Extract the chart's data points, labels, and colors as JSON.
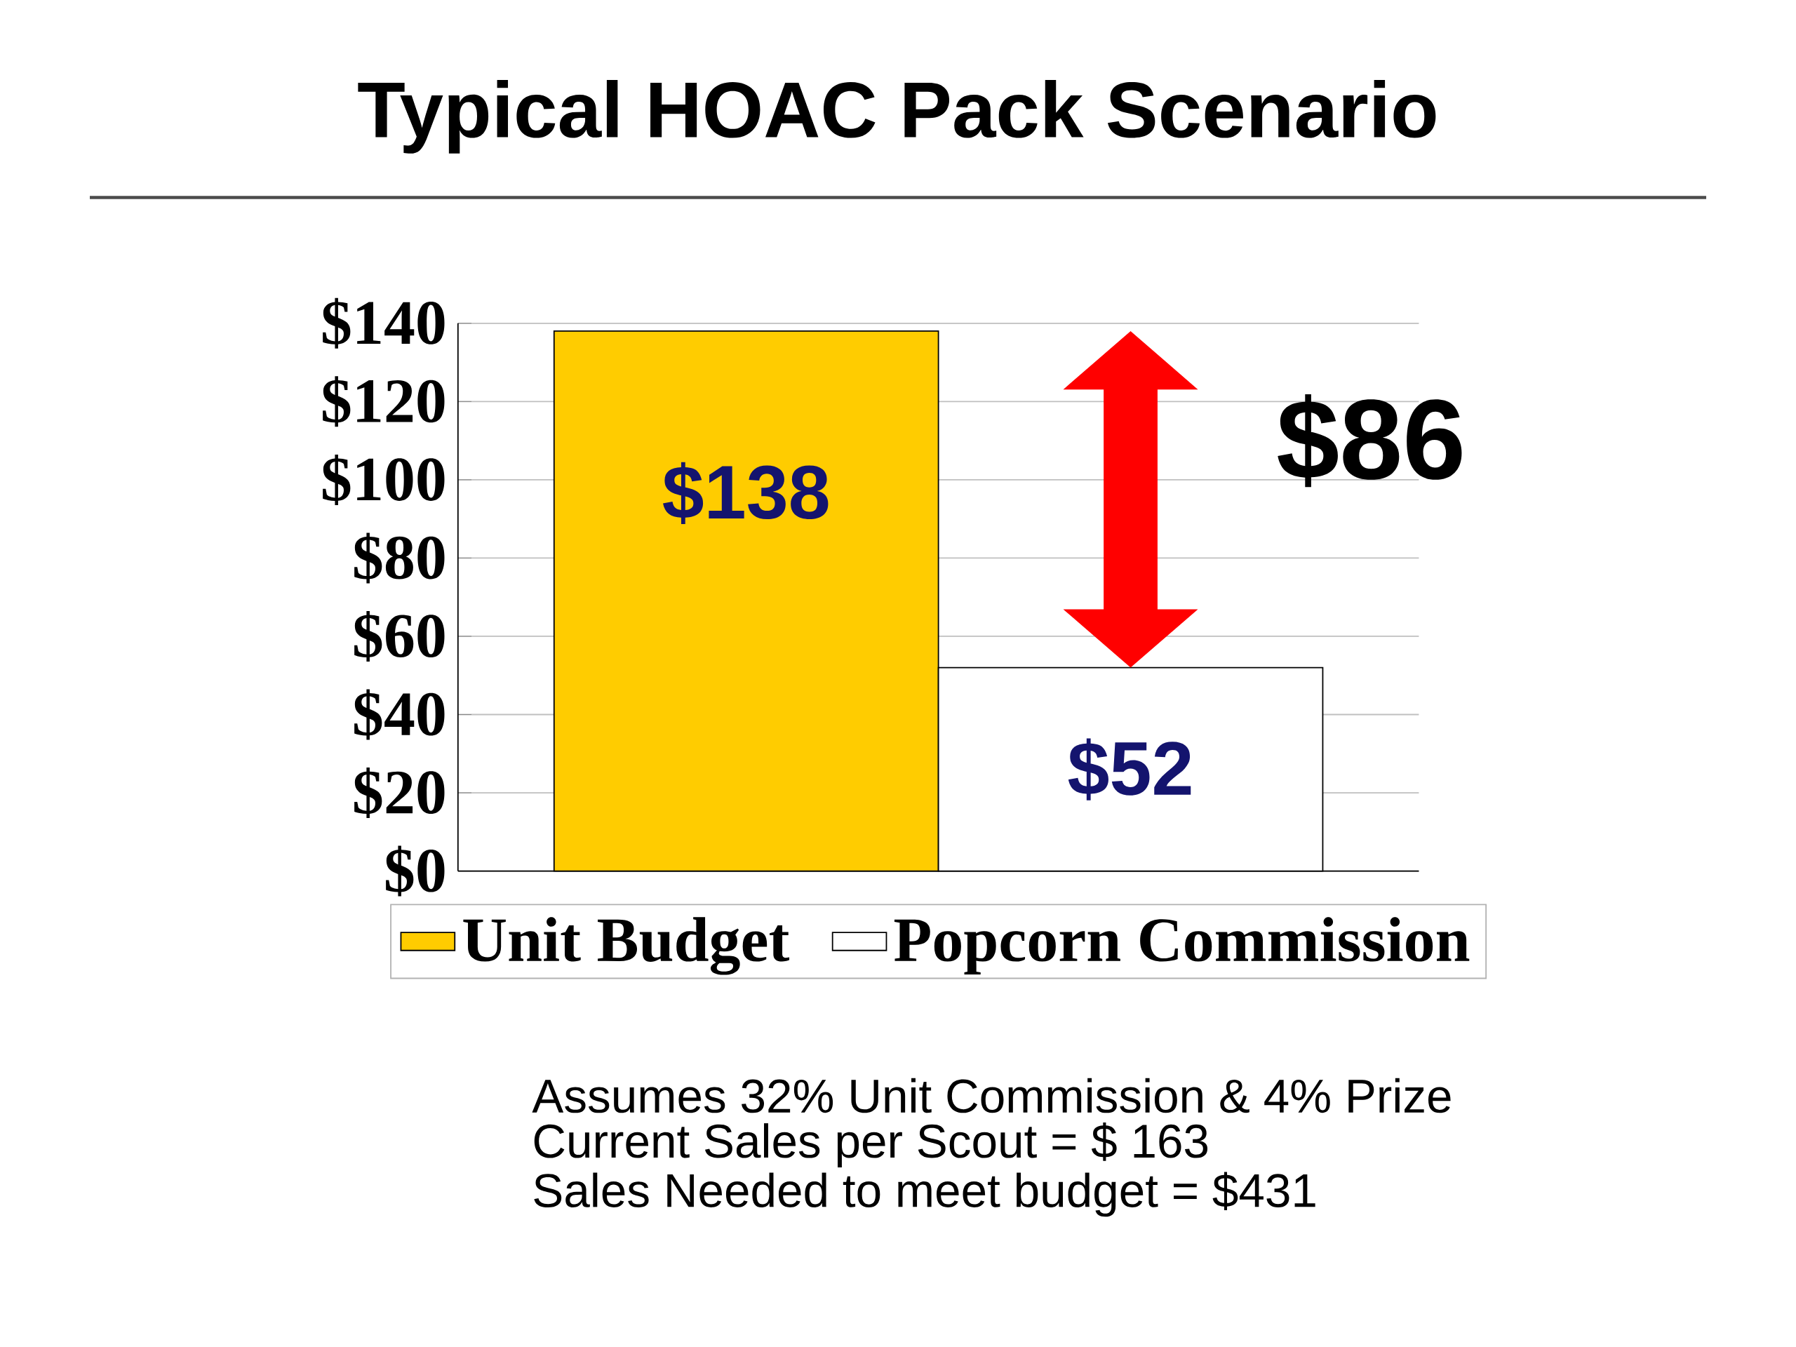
{
  "chart_data": {
    "type": "bar",
    "title": "Typical HOAC Pack Scenario",
    "categories": [
      null
    ],
    "series": [
      {
        "name": "Unit Budget",
        "color": "#ffcc00",
        "values": [
          138
        ],
        "value_labels": [
          "$138"
        ]
      },
      {
        "name": "Popcorn Commission",
        "color": "#ffffff",
        "values": [
          52
        ],
        "value_labels": [
          "$52"
        ]
      }
    ],
    "ylim": [
      0,
      140
    ],
    "yticks": [
      {
        "value": 0,
        "label": "$0"
      },
      {
        "value": 20,
        "label": "$20"
      },
      {
        "value": 40,
        "label": "$40"
      },
      {
        "value": 60,
        "label": "$60"
      },
      {
        "value": 80,
        "label": "$80"
      },
      {
        "value": 100,
        "label": "$100"
      },
      {
        "value": 120,
        "label": "$120"
      },
      {
        "value": 140,
        "label": "$140"
      }
    ],
    "grid": "y",
    "legend": "bottom",
    "annotations": [
      "$86",
      "Assumes 32% Unit Commission & 4% Prize",
      "Current Sales per Scout = $ 163",
      "Sales Needed to meet budget = $431"
    ]
  }
}
